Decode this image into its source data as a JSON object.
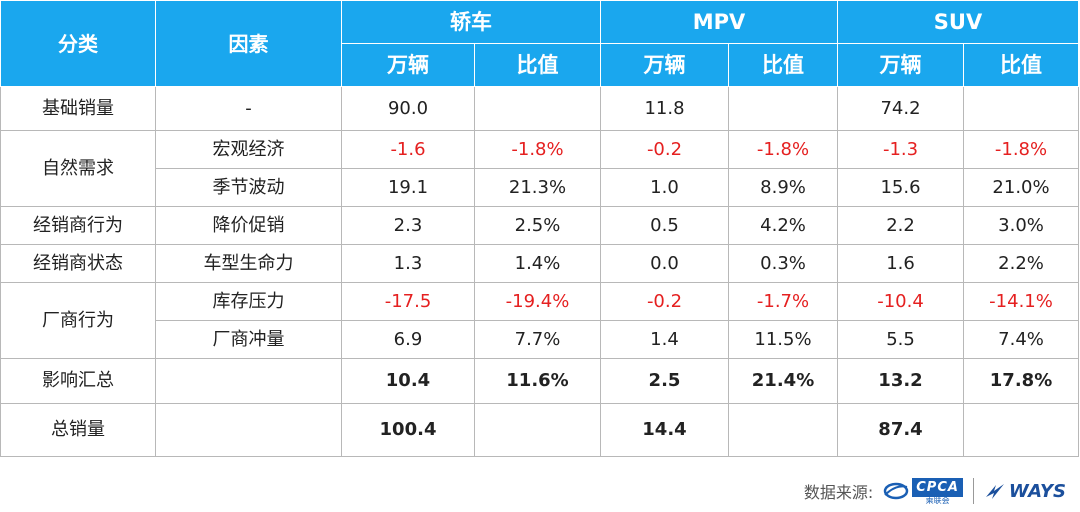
{
  "chart_data": {
    "type": "table",
    "header": {
      "category": "分类",
      "factor": "因素",
      "groups": [
        {
          "name": "轿车",
          "cols": [
            "万辆",
            "比值"
          ]
        },
        {
          "name": "MPV",
          "cols": [
            "万辆",
            "比值"
          ]
        },
        {
          "name": "SUV",
          "cols": [
            "万辆",
            "比值"
          ]
        }
      ]
    },
    "rows": [
      {
        "category": "基础销量",
        "factor": "-",
        "values": [
          "90.0",
          "",
          "11.8",
          "",
          "74.2",
          ""
        ],
        "negative": false
      },
      {
        "category": "自然需求",
        "factor": "宏观经济",
        "values": [
          "-1.6",
          "-1.8%",
          "-0.2",
          "-1.8%",
          "-1.3",
          "-1.8%"
        ],
        "negative": true
      },
      {
        "category": "",
        "factor": "季节波动",
        "values": [
          "19.1",
          "21.3%",
          "1.0",
          "8.9%",
          "15.6",
          "21.0%"
        ],
        "negative": false
      },
      {
        "category": "经销商行为",
        "factor": "降价促销",
        "values": [
          "2.3",
          "2.5%",
          "0.5",
          "4.2%",
          "2.2",
          "3.0%"
        ],
        "negative": false
      },
      {
        "category": "经销商状态",
        "factor": "车型生命力",
        "values": [
          "1.3",
          "1.4%",
          "0.0",
          "0.3%",
          "1.6",
          "2.2%"
        ],
        "negative": false
      },
      {
        "category": "厂商行为",
        "factor": "库存压力",
        "values": [
          "-17.5",
          "-19.4%",
          "-0.2",
          "-1.7%",
          "-10.4",
          "-14.1%"
        ],
        "negative": true
      },
      {
        "category": "",
        "factor": "厂商冲量",
        "values": [
          "6.9",
          "7.7%",
          "1.4",
          "11.5%",
          "5.5",
          "7.4%"
        ],
        "negative": false
      },
      {
        "category": "影响汇总",
        "factor": "",
        "values": [
          "10.4",
          "11.6%",
          "2.5",
          "21.4%",
          "13.2",
          "17.8%"
        ],
        "negative": false
      },
      {
        "category": "总销量",
        "factor": "",
        "values": [
          "100.4",
          "",
          "14.4",
          "",
          "87.4",
          ""
        ],
        "negative": false
      }
    ]
  },
  "footer": {
    "source_label": "数据来源:",
    "cpca_text": "CPCA",
    "cpca_sub": "乘联会",
    "ways_text": "WAYS"
  },
  "colors": {
    "header_bg": "#1aa7ee",
    "negative": "#e52020"
  }
}
